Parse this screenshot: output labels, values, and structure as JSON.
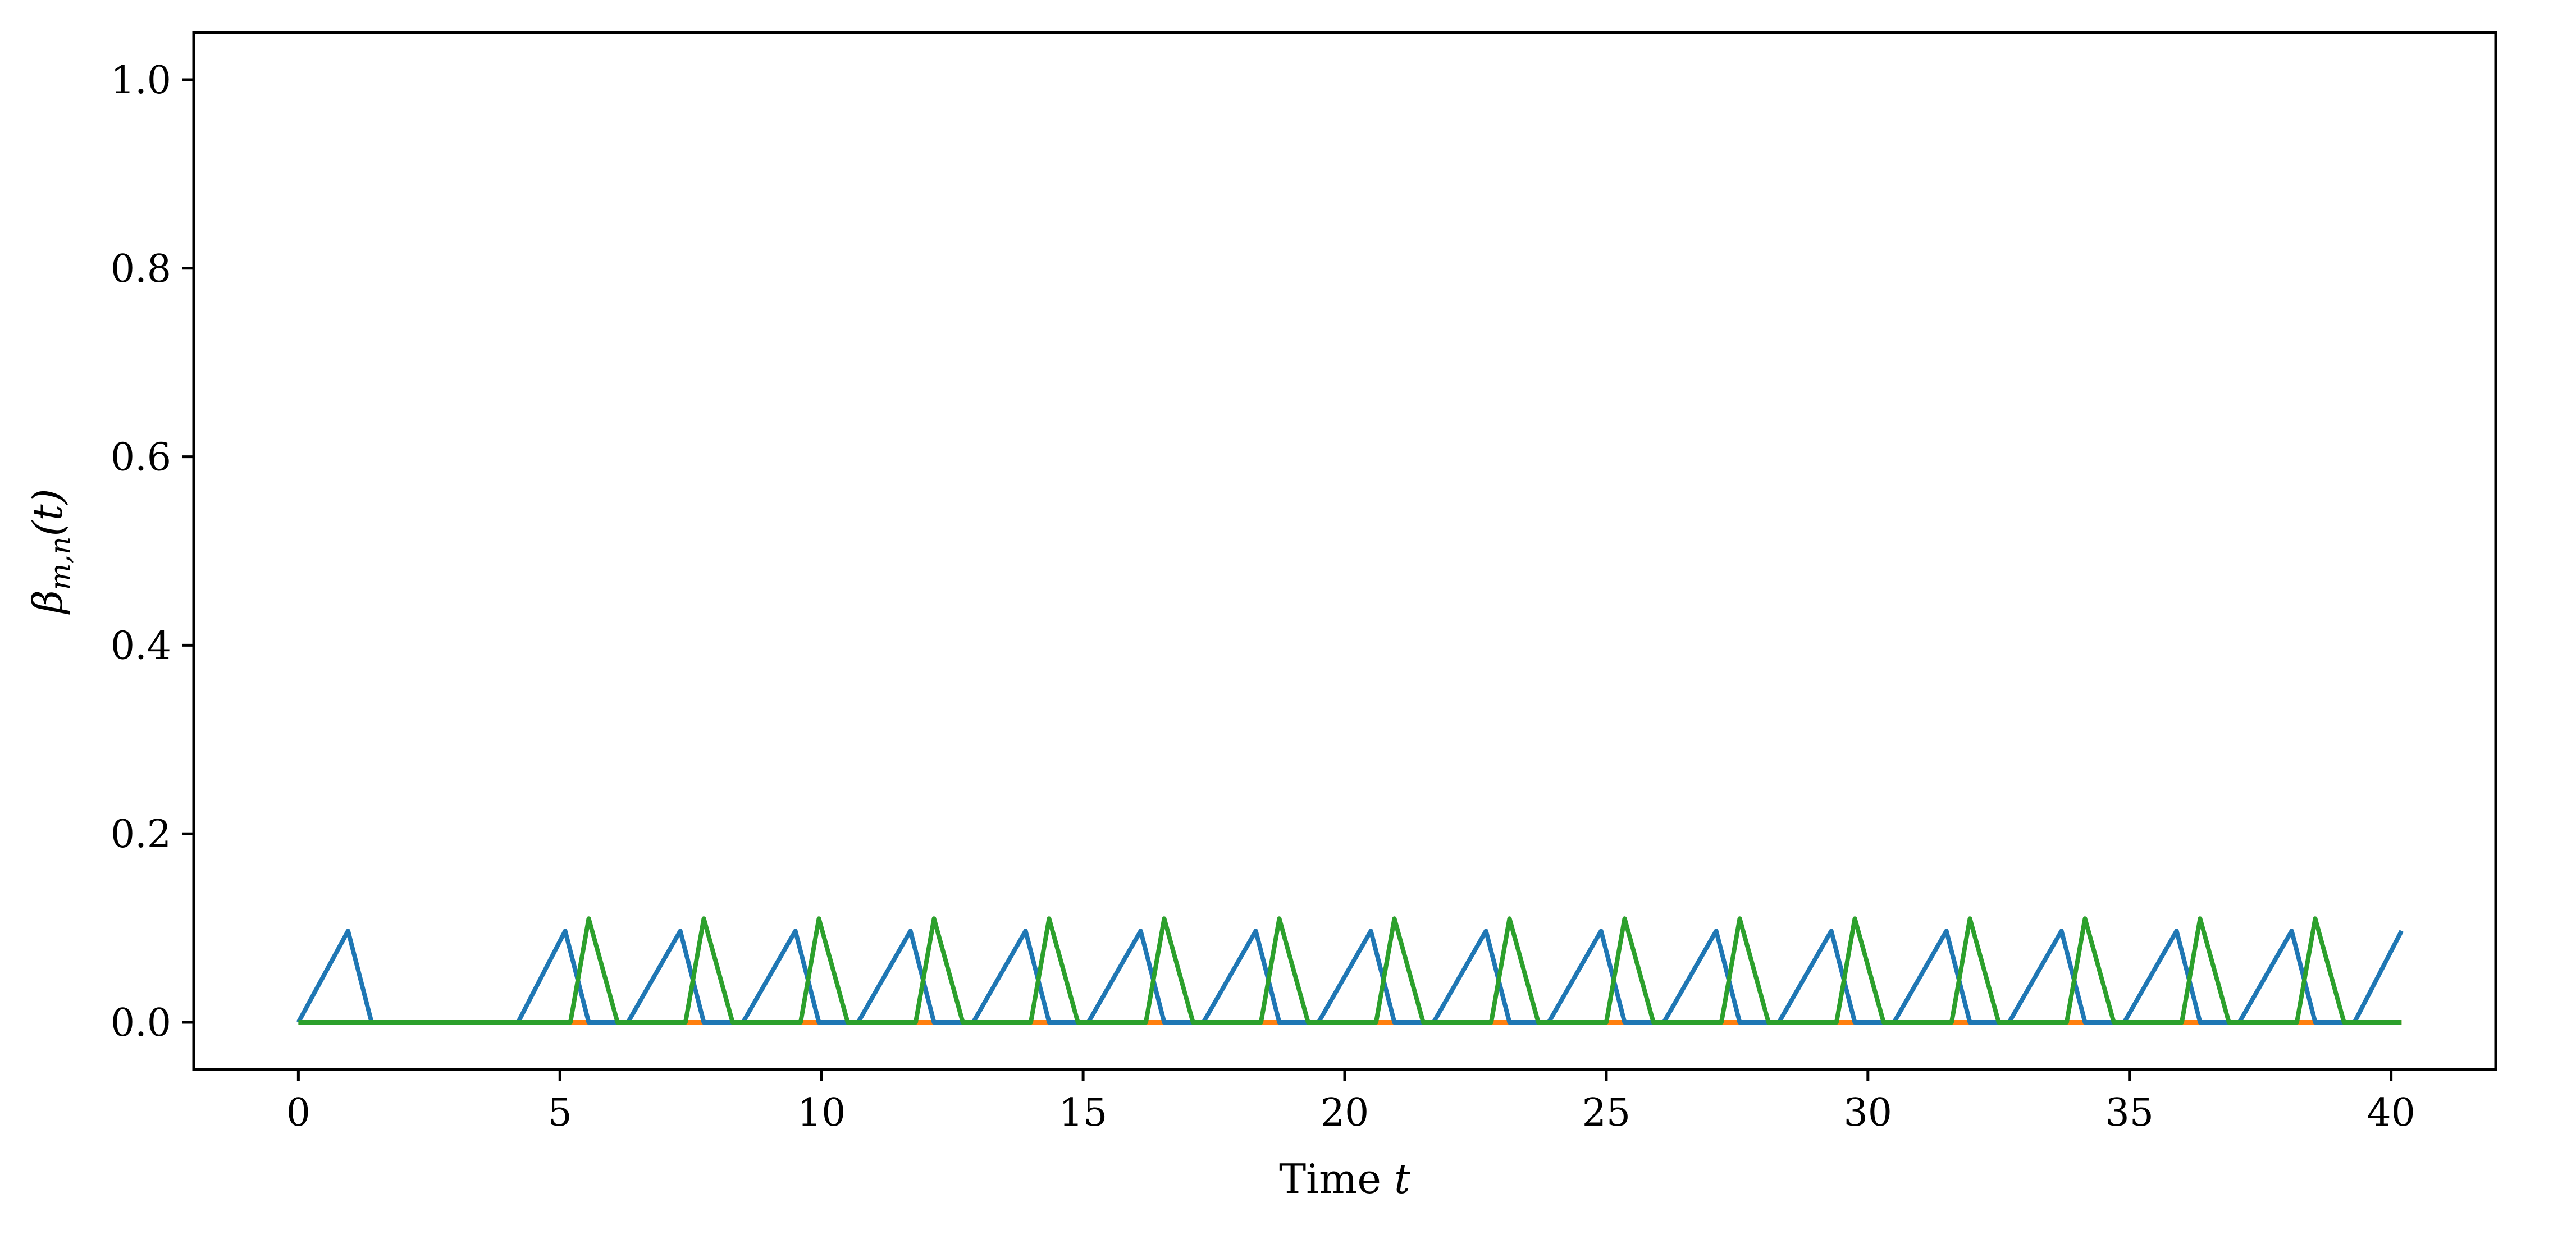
{
  "chart_data": {
    "type": "line",
    "title": "",
    "xlabel_text": "Time ",
    "xlabel_var": "t",
    "ylabel_symbol": "β",
    "ylabel_subscript": "m,n",
    "ylabel_arg": "(t)",
    "xlim": [
      -2,
      42
    ],
    "ylim": [
      -0.05,
      1.05
    ],
    "xticks": [
      0,
      5,
      10,
      15,
      20,
      25,
      30,
      35,
      40
    ],
    "xtick_labels": [
      "0",
      "5",
      "10",
      "15",
      "20",
      "25",
      "30",
      "35",
      "40"
    ],
    "yticks": [
      0.0,
      0.2,
      0.4,
      0.6,
      0.8,
      1.0
    ],
    "ytick_labels": [
      "0.0",
      "0.2",
      "0.4",
      "0.6",
      "0.8",
      "1.0"
    ],
    "grid": false,
    "legend": "none",
    "series": [
      {
        "color": "#ff7f0e",
        "x": [
          0,
          5.2,
          6.1,
          7.4,
          8.3,
          9.6,
          10.5,
          11.8,
          12.7,
          14.0,
          14.9,
          16.2,
          17.1,
          18.4,
          19.3,
          20.6,
          21.5,
          22.8,
          23.7,
          25.0,
          25.9,
          27.2,
          28.1,
          29.4,
          30.3,
          31.6,
          32.5,
          33.8,
          34.7,
          36.0,
          36.9,
          38.2,
          39.1,
          40.2
        ],
        "y": [
          0,
          0,
          0,
          0,
          0,
          0,
          0,
          0,
          0,
          0,
          0,
          0,
          0,
          0,
          0,
          0,
          0,
          0,
          0,
          0,
          0,
          0,
          0,
          0,
          0,
          0,
          0,
          0,
          0,
          0,
          0,
          0,
          0,
          0
        ]
      },
      {
        "color": "#1f77b4",
        "x": [
          0,
          0.95,
          1.4,
          4.2,
          5.1,
          5.55,
          6.3,
          7.3,
          7.75,
          8.5,
          9.5,
          9.95,
          10.7,
          11.7,
          12.15,
          12.9,
          13.9,
          14.35,
          15.1,
          16.1,
          16.55,
          17.3,
          18.3,
          18.75,
          19.5,
          20.5,
          20.95,
          21.7,
          22.7,
          23.15,
          23.9,
          24.9,
          25.35,
          26.1,
          27.1,
          27.55,
          28.3,
          29.3,
          29.75,
          30.5,
          31.5,
          31.95,
          32.7,
          33.7,
          34.15,
          34.9,
          35.9,
          36.35,
          37.1,
          38.1,
          38.55,
          39.3,
          40.2
        ],
        "y": [
          0,
          0.097,
          0,
          0,
          0.097,
          0,
          0,
          0.097,
          0,
          0,
          0.097,
          0,
          0,
          0.097,
          0,
          0,
          0.097,
          0,
          0,
          0.097,
          0,
          0,
          0.097,
          0,
          0,
          0.097,
          0,
          0,
          0.097,
          0,
          0,
          0.097,
          0,
          0,
          0.097,
          0,
          0,
          0.097,
          0,
          0,
          0.097,
          0,
          0,
          0.097,
          0,
          0,
          0.097,
          0,
          0,
          0.097,
          0,
          0,
          0.097
        ]
      },
      {
        "color": "#2ca02c",
        "x": [
          0,
          5.2,
          5.55,
          6.1,
          7.4,
          7.75,
          8.3,
          9.6,
          9.95,
          10.5,
          11.8,
          12.15,
          12.7,
          14.0,
          14.35,
          14.9,
          16.2,
          16.55,
          17.1,
          18.4,
          18.75,
          19.3,
          20.6,
          20.95,
          21.5,
          22.8,
          23.15,
          23.7,
          25.0,
          25.35,
          25.9,
          27.2,
          27.55,
          28.1,
          29.4,
          29.75,
          30.3,
          31.6,
          31.95,
          32.5,
          33.8,
          34.15,
          34.7,
          36.0,
          36.35,
          36.9,
          38.2,
          38.55,
          39.1,
          40.2
        ],
        "y": [
          0,
          0,
          0.11,
          0,
          0,
          0.11,
          0,
          0,
          0.11,
          0,
          0,
          0.11,
          0,
          0,
          0.11,
          0,
          0,
          0.11,
          0,
          0,
          0.11,
          0,
          0,
          0.11,
          0,
          0,
          0.11,
          0,
          0,
          0.11,
          0,
          0,
          0.11,
          0,
          0,
          0.11,
          0,
          0,
          0.11,
          0,
          0,
          0.11,
          0,
          0,
          0.11,
          0,
          0,
          0.11,
          0,
          0
        ]
      }
    ]
  }
}
